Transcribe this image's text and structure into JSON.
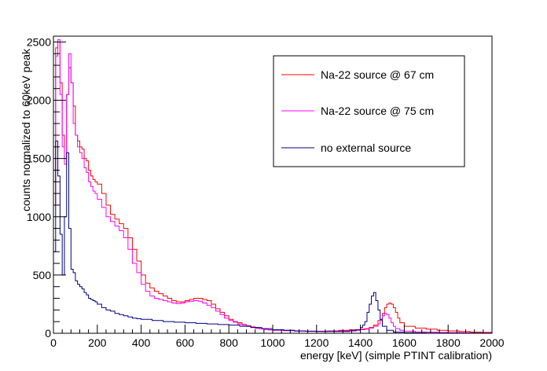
{
  "chart_data": {
    "type": "line",
    "style": "step-histogram",
    "xlabel": "energy [keV] (simple PTINT calibration)",
    "ylabel": "counts normalized to 60keV peak",
    "xlim": [
      0,
      2000
    ],
    "ylim": [
      0,
      2550
    ],
    "xticks": [
      0,
      200,
      400,
      600,
      800,
      1000,
      1200,
      1400,
      1600,
      1800,
      2000
    ],
    "yticks": [
      0,
      500,
      1000,
      1500,
      2000,
      2500
    ],
    "grid": false,
    "legend_position": "top-right",
    "series": [
      {
        "name": "Na-22 source @ 67 cm",
        "color": "#ff0000",
        "x": [
          0,
          10,
          20,
          30,
          40,
          50,
          60,
          70,
          80,
          90,
          100,
          110,
          120,
          130,
          140,
          150,
          160,
          170,
          180,
          190,
          200,
          220,
          240,
          260,
          280,
          300,
          320,
          340,
          360,
          380,
          400,
          420,
          440,
          460,
          480,
          500,
          520,
          540,
          560,
          580,
          600,
          620,
          640,
          660,
          680,
          700,
          720,
          740,
          760,
          780,
          800,
          820,
          840,
          860,
          880,
          900,
          920,
          940,
          960,
          980,
          1000,
          1050,
          1100,
          1150,
          1200,
          1250,
          1300,
          1350,
          1400,
          1420,
          1440,
          1460,
          1480,
          1500,
          1510,
          1520,
          1530,
          1540,
          1550,
          1560,
          1570,
          1580,
          1600,
          1650,
          1700,
          1750,
          1800,
          1850,
          1900,
          1950,
          2000
        ],
        "values": [
          1300,
          2450,
          2500,
          2150,
          1700,
          1500,
          2050,
          2280,
          2150,
          1950,
          1700,
          1650,
          1600,
          1580,
          1500,
          1480,
          1400,
          1350,
          1320,
          1300,
          1280,
          1200,
          1100,
          1020,
          980,
          940,
          900,
          820,
          720,
          620,
          500,
          430,
          390,
          360,
          340,
          320,
          300,
          280,
          270,
          270,
          280,
          290,
          300,
          300,
          290,
          280,
          250,
          210,
          180,
          150,
          120,
          100,
          90,
          75,
          65,
          55,
          45,
          40,
          35,
          30,
          28,
          25,
          20,
          18,
          18,
          20,
          25,
          30,
          35,
          40,
          50,
          70,
          110,
          170,
          220,
          250,
          260,
          250,
          220,
          180,
          130,
          90,
          60,
          45,
          35,
          25,
          20,
          15,
          10,
          8,
          5
        ]
      },
      {
        "name": "Na-22 source @ 75 cm",
        "color": "#ff00ff",
        "x": [
          0,
          10,
          20,
          30,
          40,
          50,
          60,
          70,
          80,
          90,
          100,
          110,
          120,
          130,
          140,
          150,
          160,
          170,
          180,
          190,
          200,
          220,
          240,
          260,
          280,
          300,
          320,
          340,
          360,
          380,
          400,
          420,
          440,
          460,
          480,
          500,
          520,
          540,
          560,
          580,
          600,
          620,
          640,
          660,
          680,
          700,
          720,
          740,
          760,
          780,
          800,
          820,
          840,
          860,
          880,
          900,
          920,
          940,
          960,
          980,
          1000,
          1050,
          1100,
          1150,
          1200,
          1250,
          1300,
          1350,
          1400,
          1420,
          1440,
          1460,
          1480,
          1490,
          1500,
          1510,
          1520,
          1530,
          1540,
          1550,
          1560,
          1580,
          1600,
          1650,
          1700,
          1750,
          1800,
          1850,
          1900,
          1950,
          2000
        ],
        "values": [
          1100,
          2380,
          2520,
          2050,
          1600,
          1450,
          2050,
          2400,
          2150,
          1800,
          1700,
          1600,
          1550,
          1500,
          1420,
          1380,
          1300,
          1260,
          1220,
          1200,
          1150,
          1080,
          1000,
          960,
          920,
          880,
          820,
          720,
          600,
          520,
          420,
          360,
          320,
          300,
          290,
          280,
          270,
          260,
          255,
          260,
          270,
          275,
          280,
          275,
          260,
          240,
          220,
          190,
          160,
          130,
          110,
          95,
          80,
          70,
          60,
          50,
          42,
          38,
          33,
          28,
          25,
          22,
          18,
          16,
          16,
          18,
          20,
          25,
          30,
          35,
          45,
          60,
          80,
          120,
          150,
          170,
          160,
          130,
          90,
          60,
          40,
          25,
          18,
          12,
          10,
          8,
          6,
          5,
          4,
          3,
          2
        ]
      },
      {
        "name": "no external source",
        "color": "#000080",
        "x": [
          0,
          10,
          20,
          30,
          40,
          50,
          60,
          70,
          80,
          90,
          100,
          110,
          120,
          130,
          140,
          150,
          160,
          170,
          180,
          190,
          200,
          220,
          240,
          260,
          280,
          300,
          320,
          340,
          360,
          380,
          400,
          450,
          500,
          550,
          600,
          650,
          700,
          750,
          800,
          850,
          900,
          950,
          1000,
          1050,
          1100,
          1150,
          1200,
          1250,
          1300,
          1350,
          1380,
          1400,
          1410,
          1420,
          1430,
          1440,
          1450,
          1460,
          1470,
          1480,
          1490,
          1500,
          1520,
          1550,
          1600,
          1650,
          1700,
          1800,
          1900,
          2000
        ],
        "values": [
          700,
          1650,
          1350,
          850,
          500,
          1000,
          1550,
          900,
          550,
          520,
          450,
          420,
          400,
          380,
          350,
          330,
          300,
          290,
          280,
          270,
          250,
          220,
          200,
          190,
          170,
          160,
          150,
          140,
          130,
          125,
          120,
          110,
          100,
          95,
          90,
          85,
          80,
          75,
          70,
          60,
          50,
          40,
          30,
          25,
          20,
          18,
          15,
          15,
          15,
          20,
          30,
          50,
          70,
          100,
          180,
          250,
          320,
          350,
          280,
          200,
          120,
          60,
          25,
          10,
          5,
          3,
          2,
          1,
          1,
          0
        ]
      }
    ]
  }
}
